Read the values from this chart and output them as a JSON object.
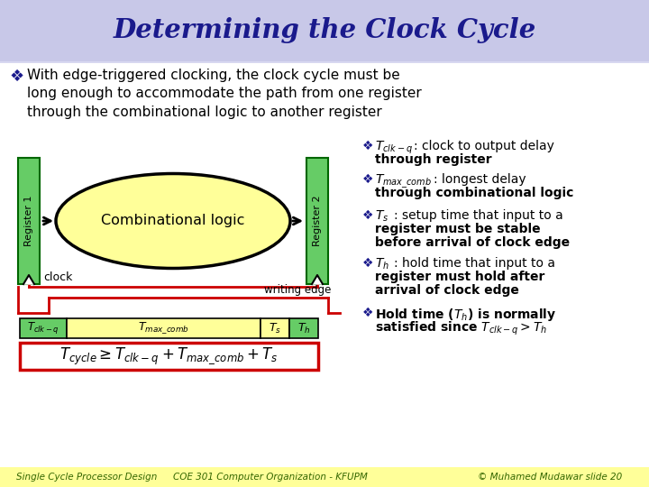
{
  "title": "Determining the Clock Cycle",
  "title_color": "#1a1a8c",
  "title_bg": "#c8c8e8",
  "bg_color": "#d8d8f0",
  "main_bg": "#ffffff",
  "bullet_text_line1": "With edge-triggered clocking, the clock cycle must be",
  "bullet_text_line2": "long enough to accommodate the path from one register",
  "bullet_text_line3": "through the combinational logic to another register",
  "register1_label": "Register 1",
  "register2_label": "Register 2",
  "comb_logic_label": "Combinational logic",
  "clock_label": "clock",
  "writing_edge_label": "writing edge",
  "reg_fill": "#66cc66",
  "reg_stroke": "#006600",
  "ellipse_fill": "#ffff99",
  "ellipse_stroke": "#000000",
  "clock_color": "#cc0000",
  "timing_fill_green": "#66cc66",
  "timing_fill_yellow": "#ffff99",
  "bullet_color": "#1a1a8c",
  "footer_bg": "#ffff99",
  "footer_text1": "Single Cycle Processor Design",
  "footer_text2": "COE 301 Computer Organization - KFUPM",
  "footer_text3": "© Muhamed Mudawar slide 20",
  "text_color": "#000000",
  "bold_color": "#000000"
}
